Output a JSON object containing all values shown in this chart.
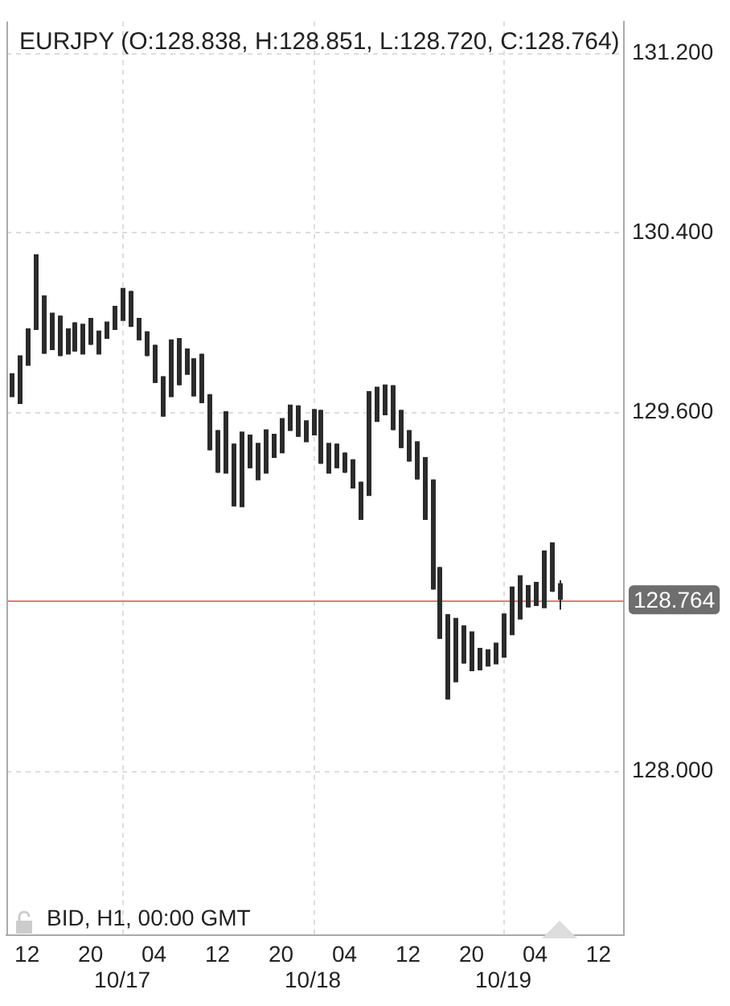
{
  "chart_data": {
    "type": "candlestick",
    "title": "EURJPY (O:128.838, H:128.851, L:128.720, C:128.764)",
    "annotations": [
      "BID, H1, 00:00 GMT"
    ],
    "color": "#2b2b2b",
    "x": [
      "--10-16T10:00",
      "--10-16T11:00",
      "--10-16T12:00",
      "--10-16T13:00",
      "--10-16T14:00",
      "--10-16T15:00",
      "--10-16T16:00",
      "--10-16T17:00",
      "--10-16T18:00",
      "--10-16T19:00",
      "--10-16T20:00",
      "--10-16T21:00",
      "--10-16T22:00",
      "--10-16T23:00",
      "--10-17T00:00",
      "--10-17T01:00",
      "--10-17T02:00",
      "--10-17T03:00",
      "--10-17T04:00",
      "--10-17T05:00",
      "--10-17T06:00",
      "--10-17T07:00",
      "--10-17T08:00",
      "--10-17T09:00",
      "--10-17T10:00",
      "--10-17T11:00",
      "--10-17T12:00",
      "--10-17T13:00",
      "--10-17T14:00",
      "--10-17T15:00",
      "--10-17T16:00",
      "--10-17T17:00",
      "--10-17T18:00",
      "--10-17T19:00",
      "--10-17T20:00",
      "--10-17T21:00",
      "--10-17T22:00",
      "--10-17T23:00",
      "--10-18T00:00",
      "--10-18T01:00",
      "--10-18T02:00",
      "--10-18T03:00",
      "--10-18T04:00",
      "--10-18T05:00",
      "--10-18T06:00",
      "--10-18T07:00",
      "--10-18T08:00",
      "--10-18T09:00",
      "--10-18T10:00",
      "--10-18T11:00",
      "--10-18T12:00",
      "--10-18T13:00",
      "--10-18T14:00",
      "--10-18T15:00",
      "--10-18T16:00",
      "--10-18T17:00",
      "--10-18T18:00",
      "--10-18T19:00",
      "--10-18T20:00",
      "--10-18T21:00",
      "--10-18T22:00",
      "--10-18T23:00",
      "--10-19T00:00",
      "--10-19T01:00",
      "--10-19T02:00",
      "--10-19T03:00",
      "--10-19T04:00",
      "--10-19T05:00",
      "--10-19T06:00",
      "--10-19T07:00"
    ],
    "ohlc": [
      [
        129.67,
        129.77,
        129.67,
        129.77
      ],
      [
        129.64,
        129.85,
        129.64,
        129.85
      ],
      [
        129.81,
        129.97,
        129.81,
        129.97
      ],
      [
        129.97,
        130.3,
        129.97,
        130.3
      ],
      [
        130.12,
        130.12,
        129.86,
        129.86
      ],
      [
        129.88,
        130.04,
        129.88,
        130.04
      ],
      [
        130.03,
        130.03,
        129.85,
        129.85
      ],
      [
        129.86,
        129.97,
        129.86,
        129.97
      ],
      [
        130.0,
        130.0,
        129.87,
        129.87
      ],
      [
        129.86,
        129.99,
        129.86,
        129.99
      ],
      [
        130.02,
        130.02,
        129.9,
        129.9
      ],
      [
        129.86,
        129.96,
        129.86,
        129.96
      ],
      [
        129.93,
        130.0,
        129.93,
        130.0
      ],
      [
        129.97,
        130.07,
        129.97,
        130.07
      ],
      [
        130.01,
        130.15,
        130.01,
        130.15
      ],
      [
        130.14,
        130.14,
        129.98,
        129.98
      ],
      [
        130.02,
        130.02,
        129.92,
        129.92
      ],
      [
        129.96,
        129.96,
        129.85,
        129.85
      ],
      [
        129.9,
        129.9,
        129.73,
        129.73
      ],
      [
        129.76,
        129.76,
        129.58,
        129.58
      ],
      [
        129.67,
        129.92,
        129.67,
        129.92
      ],
      [
        129.93,
        129.93,
        129.72,
        129.72
      ],
      [
        129.77,
        129.88,
        129.77,
        129.88
      ],
      [
        129.84,
        129.84,
        129.67,
        129.67
      ],
      [
        129.86,
        129.86,
        129.64,
        129.64
      ],
      [
        129.68,
        129.68,
        129.43,
        129.43
      ],
      [
        129.52,
        129.52,
        129.33,
        129.33
      ],
      [
        129.33,
        129.6,
        129.33,
        129.6
      ],
      [
        129.46,
        129.46,
        129.18,
        129.18
      ],
      [
        129.18,
        129.51,
        129.18,
        129.51
      ],
      [
        129.5,
        129.5,
        129.35,
        129.35
      ],
      [
        129.3,
        129.46,
        129.3,
        129.46
      ],
      [
        129.33,
        129.52,
        129.33,
        129.52
      ],
      [
        129.4,
        129.5,
        129.4,
        129.5
      ],
      [
        129.42,
        129.57,
        129.42,
        129.57
      ],
      [
        129.52,
        129.63,
        129.52,
        129.63
      ],
      [
        129.63,
        129.63,
        129.49,
        129.49
      ],
      [
        129.47,
        129.56,
        129.47,
        129.56
      ],
      [
        129.5,
        129.61,
        129.5,
        129.61
      ],
      [
        129.61,
        129.61,
        129.37,
        129.37
      ],
      [
        129.33,
        129.46,
        129.33,
        129.46
      ],
      [
        129.46,
        129.46,
        129.35,
        129.35
      ],
      [
        129.42,
        129.42,
        129.33,
        129.33
      ],
      [
        129.39,
        129.39,
        129.26,
        129.26
      ],
      [
        129.29,
        129.29,
        129.12,
        129.12
      ],
      [
        129.23,
        129.69,
        129.23,
        129.69
      ],
      [
        129.56,
        129.71,
        129.56,
        129.71
      ],
      [
        129.59,
        129.72,
        129.59,
        129.72
      ],
      [
        129.72,
        129.72,
        129.52,
        129.52
      ],
      [
        129.61,
        129.61,
        129.44,
        129.44
      ],
      [
        129.52,
        129.52,
        129.38,
        129.38
      ],
      [
        129.47,
        129.47,
        129.3,
        129.3
      ],
      [
        129.4,
        129.4,
        129.12,
        129.12
      ],
      [
        129.3,
        129.3,
        128.81,
        128.81
      ],
      [
        128.91,
        128.91,
        128.59,
        128.59
      ],
      [
        128.7,
        128.7,
        128.32,
        128.32
      ],
      [
        128.4,
        128.68,
        128.4,
        128.68
      ],
      [
        128.65,
        128.65,
        128.48,
        128.48
      ],
      [
        128.45,
        128.62,
        128.45,
        128.62
      ],
      [
        128.55,
        128.55,
        128.45,
        128.45
      ],
      [
        128.47,
        128.54,
        128.47,
        128.54
      ],
      [
        128.48,
        128.57,
        128.48,
        128.57
      ],
      [
        128.51,
        128.7,
        128.51,
        128.7
      ],
      [
        128.61,
        128.82,
        128.61,
        128.82
      ],
      [
        128.68,
        128.87,
        128.68,
        128.87
      ],
      [
        128.83,
        128.83,
        128.73,
        128.73
      ],
      [
        128.74,
        128.84,
        128.74,
        128.84
      ],
      [
        128.73,
        128.98,
        128.73,
        128.98
      ],
      [
        129.02,
        129.02,
        128.8,
        128.8
      ],
      [
        128.838,
        128.851,
        128.72,
        128.764
      ]
    ],
    "xlim": [
      "--10-16T09:24",
      "--10-19T15:12"
    ],
    "xticks": [
      {
        "value": "--10-16T12:00",
        "label": "12"
      },
      {
        "value": "--10-16T20:00",
        "label": "20"
      },
      {
        "value": "--10-17T04:00",
        "label": "04"
      },
      {
        "value": "--10-17T12:00",
        "label": "12"
      },
      {
        "value": "--10-17T20:00",
        "label": "20"
      },
      {
        "value": "--10-18T04:00",
        "label": "04"
      },
      {
        "value": "--10-18T12:00",
        "label": "12"
      },
      {
        "value": "--10-18T20:00",
        "label": "20"
      },
      {
        "value": "--10-19T04:00",
        "label": "04"
      },
      {
        "value": "--10-19T12:00",
        "label": "12"
      }
    ],
    "x2lim": [
      "--10-16T09:24",
      "--10-19T15:12"
    ],
    "x2ticks": [
      {
        "value": "--10-17",
        "label": "10/17"
      },
      {
        "value": "--10-18",
        "label": "10/18"
      },
      {
        "value": "--10-19",
        "label": "10/19"
      }
    ],
    "ylim": [
      127.27,
      131.34
    ],
    "yticks": [
      {
        "value": 128,
        "label": "128.000"
      },
      {
        "value": 129.6,
        "label": "129.600"
      },
      {
        "value": 130.4,
        "label": "130.400"
      },
      {
        "value": 131.2,
        "label": "131.200"
      }
    ],
    "ref_lines": [
      {
        "axis": "y",
        "value": 128.764,
        "label": "128.764",
        "color": "#e07a7a"
      }
    ],
    "grid": true
  }
}
